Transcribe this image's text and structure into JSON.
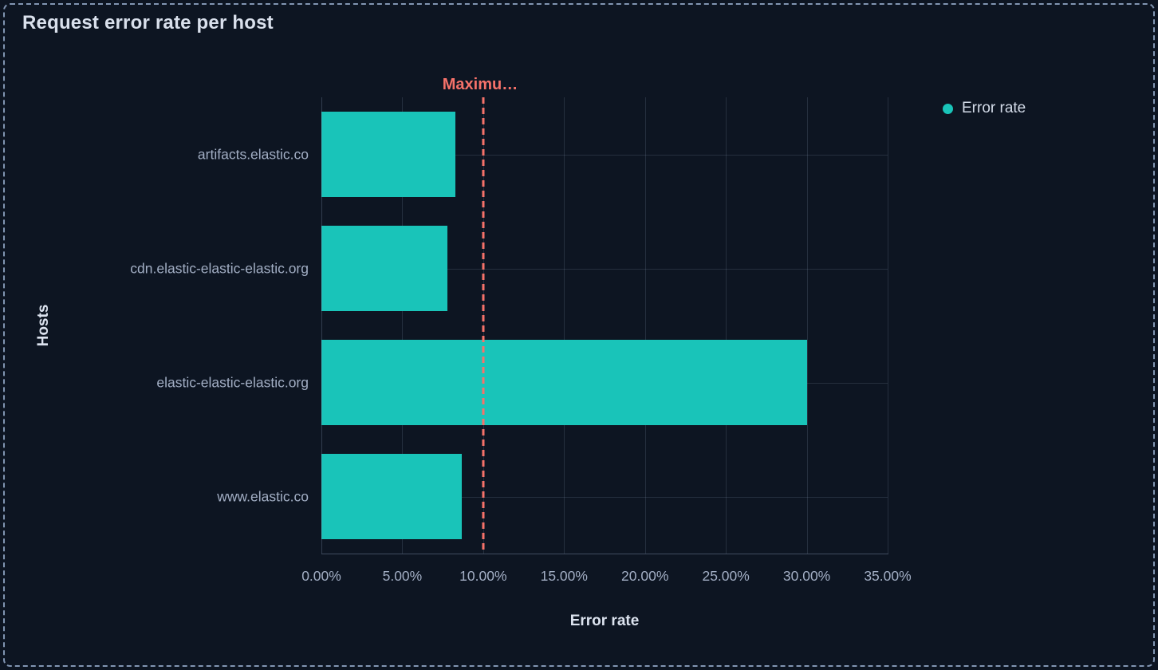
{
  "panel": {
    "title": "Request error rate per host",
    "background_color": "#0D1522",
    "border_color": "#8195B2"
  },
  "legend": {
    "position": "top-right",
    "items": [
      {
        "label": "Error rate",
        "color": "#19C4B9"
      }
    ]
  },
  "chart_data": {
    "type": "bar",
    "orientation": "horizontal",
    "title": "Request error rate per host",
    "categories": [
      "artifacts.elastic.co",
      "cdn.elastic-elastic-elastic.org",
      "elastic-elastic-elastic.org",
      "www.elastic.co"
    ],
    "series": [
      {
        "name": "Error rate",
        "color": "#19C4B9",
        "values": [
          8.3,
          7.8,
          30,
          8.7
        ]
      }
    ],
    "xlabel": "Error rate",
    "ylabel": "Hosts",
    "xlim": [
      0,
      35
    ],
    "x_ticks": [
      0,
      5,
      10,
      15,
      20,
      25,
      30,
      35
    ],
    "x_tick_labels": [
      "0.00%",
      "5.00%",
      "10.00%",
      "15.00%",
      "20.00%",
      "25.00%",
      "30.00%",
      "35.00%"
    ],
    "grid": true,
    "annotations": [
      {
        "type": "vline",
        "value": 10,
        "label": "Maximu…",
        "color": "#F6726A",
        "line_style": "dashed"
      }
    ],
    "colors": {
      "grid": "rgba(148,166,196,0.18)",
      "axis_line": "rgba(148,166,196,0.38)",
      "tick_label": "#A2AEC4",
      "axis_title": "#DCE3EF"
    }
  }
}
